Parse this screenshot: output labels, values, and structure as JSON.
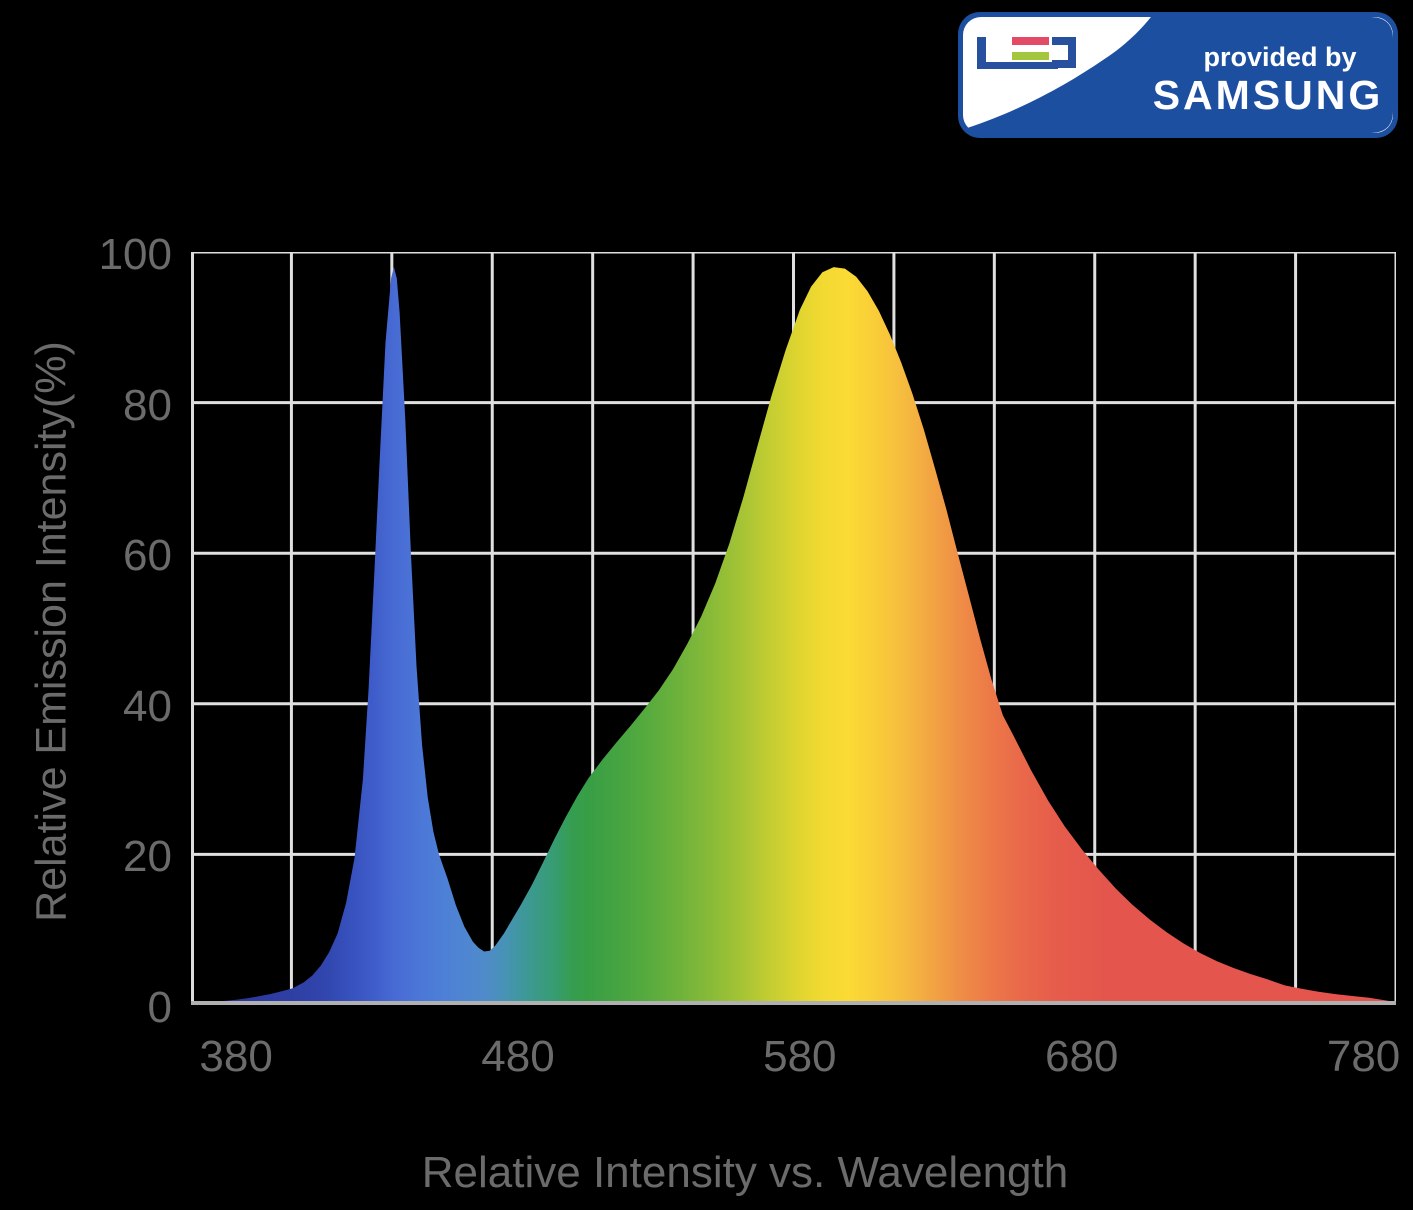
{
  "logo": {
    "led_label": "LED",
    "provided_by": "provided by",
    "brand": "SAMSUNG",
    "colors": {
      "badge_blue": "#1d4fa1",
      "glyph_blue": "#27519f",
      "e_top_bar": "#e34a66",
      "e_bottom_bar": "#a2c63d",
      "white": "#ffffff"
    }
  },
  "colors": {
    "background": "#000000",
    "gridline": "#e0e0e0",
    "y_axis_line": "#dcdcdc",
    "baseline": "#b0b0b0",
    "tick_text": "#6b6b6b",
    "axis_label_text": "#6b6b6b"
  },
  "chart_data": {
    "type": "area",
    "title": "",
    "xlabel": "Relative Intensity vs. Wavelength",
    "ylabel": "Relative Emission Intensity(%)",
    "x_ticks": [
      380,
      480,
      580,
      680,
      780
    ],
    "y_ticks": [
      100,
      80,
      60,
      40,
      20,
      0
    ],
    "xlim": [
      364,
      791.5
    ],
    "ylim": [
      0,
      100
    ],
    "grid": true,
    "grid_columns": 12,
    "grid_rows": 5,
    "legend": "none",
    "blue_peak": {
      "wavelength_nm": 435,
      "intensity_pct": 98
    },
    "main_peak": {
      "wavelength_nm": 593,
      "intensity_pct": 98
    },
    "valley": {
      "wavelength_nm": 468,
      "intensity_pct": 7
    },
    "series": [
      {
        "name": "white-led-spectral-power-distribution",
        "points": [
          [
            364,
            0.2
          ],
          [
            368,
            0.3
          ],
          [
            372,
            0.4
          ],
          [
            376,
            0.55
          ],
          [
            380,
            0.7
          ],
          [
            384,
            0.9
          ],
          [
            388,
            1.15
          ],
          [
            392,
            1.45
          ],
          [
            396,
            1.8
          ],
          [
            400,
            2.2
          ],
          [
            404,
            3.0
          ],
          [
            407,
            3.9
          ],
          [
            410,
            5.2
          ],
          [
            413,
            7.0
          ],
          [
            416,
            9.5
          ],
          [
            419,
            13.5
          ],
          [
            422,
            19.5
          ],
          [
            425,
            30
          ],
          [
            427,
            42
          ],
          [
            429,
            57
          ],
          [
            431,
            73
          ],
          [
            433,
            88
          ],
          [
            435,
            96.5
          ],
          [
            436,
            98
          ],
          [
            437,
            96.5
          ],
          [
            438,
            92
          ],
          [
            440,
            78
          ],
          [
            442,
            60
          ],
          [
            444,
            45
          ],
          [
            446,
            34.5
          ],
          [
            448,
            27.5
          ],
          [
            450,
            23
          ],
          [
            452,
            20
          ],
          [
            455,
            16.8
          ],
          [
            458,
            13.2
          ],
          [
            461,
            10.4
          ],
          [
            464,
            8.4
          ],
          [
            466,
            7.6
          ],
          [
            468,
            7.1
          ],
          [
            470,
            7.2
          ],
          [
            472,
            7.9
          ],
          [
            475,
            9.5
          ],
          [
            478,
            11.4
          ],
          [
            481,
            13.3
          ],
          [
            485,
            16
          ],
          [
            489,
            19
          ],
          [
            493,
            22.1
          ],
          [
            497,
            25
          ],
          [
            501,
            27.7
          ],
          [
            505,
            30.1
          ],
          [
            510,
            32.6
          ],
          [
            515,
            34.9
          ],
          [
            520,
            37.1
          ],
          [
            525,
            39.4
          ],
          [
            530,
            41.8
          ],
          [
            535,
            44.6
          ],
          [
            540,
            47.9
          ],
          [
            545,
            51.6
          ],
          [
            550,
            56
          ],
          [
            555,
            61.3
          ],
          [
            560,
            67.5
          ],
          [
            565,
            74.3
          ],
          [
            570,
            81
          ],
          [
            575,
            87
          ],
          [
            580,
            92.3
          ],
          [
            584,
            95.4
          ],
          [
            588,
            97.3
          ],
          [
            592,
            98
          ],
          [
            596,
            97.8
          ],
          [
            600,
            96.7
          ],
          [
            604,
            94.8
          ],
          [
            608,
            92.2
          ],
          [
            612,
            89
          ],
          [
            616,
            85.3
          ],
          [
            620,
            81.1
          ],
          [
            624,
            76.4
          ],
          [
            628,
            71.2
          ],
          [
            632,
            65.8
          ],
          [
            636,
            60
          ],
          [
            640,
            54.3
          ],
          [
            644,
            48.6
          ],
          [
            648,
            43.2
          ],
          [
            652,
            38.5
          ],
          [
            656,
            35.6
          ],
          [
            662,
            31.2
          ],
          [
            668,
            27.2
          ],
          [
            674,
            23.7
          ],
          [
            680,
            20.7
          ],
          [
            686,
            18
          ],
          [
            692,
            15.5
          ],
          [
            698,
            13.3
          ],
          [
            704,
            11.4
          ],
          [
            710,
            9.7
          ],
          [
            716,
            8.2
          ],
          [
            722,
            6.9
          ],
          [
            728,
            5.8
          ],
          [
            734,
            4.9
          ],
          [
            740,
            4.1
          ],
          [
            746,
            3.4
          ],
          [
            752,
            2.6
          ],
          [
            758,
            2.15
          ],
          [
            764,
            1.75
          ],
          [
            770,
            1.45
          ],
          [
            776,
            1.2
          ],
          [
            782,
            0.95
          ],
          [
            788,
            0.6
          ],
          [
            791.5,
            0.4
          ]
        ]
      }
    ],
    "gradient_stops": [
      {
        "offset": 0.0,
        "color": "#2b3491"
      },
      {
        "offset": 0.04,
        "color": "#2c389a"
      },
      {
        "offset": 0.084,
        "color": "#2e3fa4"
      },
      {
        "offset": 0.11,
        "color": "#3145ad"
      },
      {
        "offset": 0.13,
        "color": "#3650bc"
      },
      {
        "offset": 0.15,
        "color": "#3e5cc9"
      },
      {
        "offset": 0.167,
        "color": "#4769d3"
      },
      {
        "offset": 0.185,
        "color": "#4b74d7"
      },
      {
        "offset": 0.205,
        "color": "#4d7ed7"
      },
      {
        "offset": 0.225,
        "color": "#4e85d2"
      },
      {
        "offset": 0.245,
        "color": "#4f8bc9"
      },
      {
        "offset": 0.262,
        "color": "#4693b4"
      },
      {
        "offset": 0.28,
        "color": "#3c9992"
      },
      {
        "offset": 0.3,
        "color": "#379c74"
      },
      {
        "offset": 0.315,
        "color": "#359d52"
      },
      {
        "offset": 0.33,
        "color": "#389e45"
      },
      {
        "offset": 0.355,
        "color": "#46a441"
      },
      {
        "offset": 0.38,
        "color": "#58ab3e"
      },
      {
        "offset": 0.405,
        "color": "#6eb23b"
      },
      {
        "offset": 0.43,
        "color": "#87ba38"
      },
      {
        "offset": 0.455,
        "color": "#a3c335"
      },
      {
        "offset": 0.48,
        "color": "#c3cd32"
      },
      {
        "offset": 0.505,
        "color": "#e0d530"
      },
      {
        "offset": 0.525,
        "color": "#f2da31"
      },
      {
        "offset": 0.545,
        "color": "#fbda34"
      },
      {
        "offset": 0.565,
        "color": "#f9cf38"
      },
      {
        "offset": 0.59,
        "color": "#f6bd3e"
      },
      {
        "offset": 0.615,
        "color": "#f2a443"
      },
      {
        "offset": 0.64,
        "color": "#ef8c46"
      },
      {
        "offset": 0.665,
        "color": "#ec7848"
      },
      {
        "offset": 0.69,
        "color": "#e9684a"
      },
      {
        "offset": 0.72,
        "color": "#e65c4b"
      },
      {
        "offset": 0.76,
        "color": "#e4564d"
      },
      {
        "offset": 1.0,
        "color": "#e4544d"
      }
    ]
  }
}
